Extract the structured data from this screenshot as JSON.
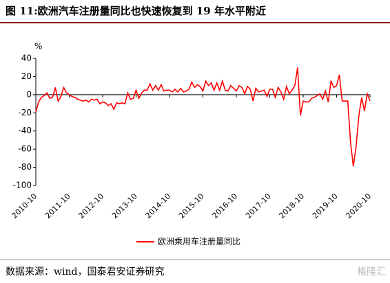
{
  "chart_data": {
    "type": "line",
    "title": "图 11:欧洲汽车注册量同比也快速恢复到 19 年水平附近",
    "y_unit": "%",
    "categories": [
      "2010-10",
      null,
      null,
      null,
      null,
      null,
      null,
      null,
      null,
      null,
      null,
      null,
      "2011-10",
      null,
      null,
      null,
      null,
      null,
      null,
      null,
      null,
      null,
      null,
      null,
      "2012-10",
      null,
      null,
      null,
      null,
      null,
      null,
      null,
      null,
      null,
      null,
      null,
      "2013-10",
      null,
      null,
      null,
      null,
      null,
      null,
      null,
      null,
      null,
      null,
      null,
      "2014-10",
      null,
      null,
      null,
      null,
      null,
      null,
      null,
      null,
      null,
      null,
      null,
      "2015-10",
      null,
      null,
      null,
      null,
      null,
      null,
      null,
      null,
      null,
      null,
      null,
      "2016-10",
      null,
      null,
      null,
      null,
      null,
      null,
      null,
      null,
      null,
      null,
      null,
      "2017-10",
      null,
      null,
      null,
      null,
      null,
      null,
      null,
      null,
      null,
      null,
      null,
      "2018-10",
      null,
      null,
      null,
      null,
      null,
      null,
      null,
      null,
      null,
      null,
      null,
      "2019-10",
      null,
      null,
      null,
      null,
      null,
      null,
      null,
      null,
      null,
      null,
      null,
      "2020-10"
    ],
    "series": [
      {
        "name": "欧洲乘用车注册量同比",
        "color": "#ff0000",
        "values": [
          -19,
          -8,
          -3,
          -1,
          2,
          -4,
          -3,
          8,
          -7,
          -2,
          8,
          2,
          0,
          -2,
          -3,
          -5,
          -6,
          -7,
          -6,
          -8,
          -5,
          -6,
          -5,
          -10,
          -8,
          -9,
          -12,
          -10,
          -16,
          -9,
          -10,
          -9,
          -10,
          2,
          -5,
          -4,
          5,
          -4,
          2,
          5,
          5,
          12,
          5,
          10,
          5,
          11,
          4,
          5,
          5,
          3,
          6,
          3,
          7,
          3,
          4,
          6,
          14,
          8,
          11,
          9,
          4,
          15,
          10,
          13,
          5,
          13,
          5,
          15,
          5,
          4,
          10,
          7,
          4,
          10,
          8,
          1,
          9,
          6,
          -7,
          7,
          3,
          4,
          5,
          -2,
          6,
          6,
          -3,
          8,
          3,
          -5,
          9,
          1,
          5,
          10,
          30,
          -23,
          -7,
          -8,
          -8,
          -4,
          -3,
          -1,
          1,
          -5,
          4,
          -8,
          15,
          8,
          10,
          22,
          -7,
          -7,
          -7,
          -52,
          -79,
          -57,
          -23,
          -3,
          -18,
          1,
          -7
        ]
      }
    ],
    "ylim": [
      -100,
      40
    ],
    "yticks": [
      -100,
      -80,
      -60,
      -40,
      -20,
      0,
      20,
      40
    ],
    "grid": false,
    "legend": "bottom"
  },
  "source": "数据来源：wind，国泰君安证券研究",
  "watermark": "格隆汇"
}
